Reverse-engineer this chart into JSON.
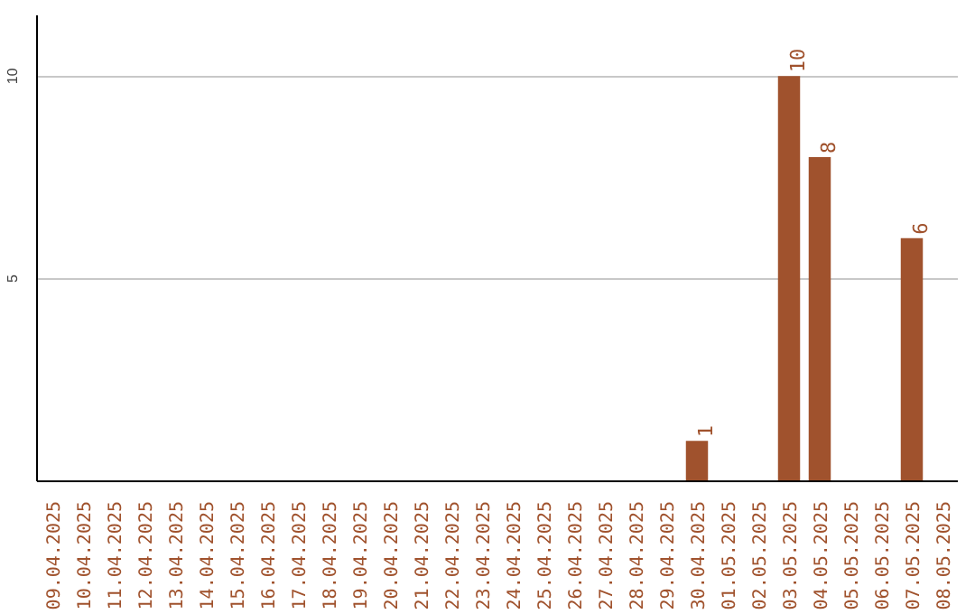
{
  "chart_data": {
    "type": "bar",
    "categories": [
      "09.04.2025",
      "10.04.2025",
      "11.04.2025",
      "12.04.2025",
      "13.04.2025",
      "14.04.2025",
      "15.04.2025",
      "16.04.2025",
      "17.04.2025",
      "18.04.2025",
      "19.04.2025",
      "20.04.2025",
      "21.04.2025",
      "22.04.2025",
      "23.04.2025",
      "24.04.2025",
      "25.04.2025",
      "26.04.2025",
      "27.04.2025",
      "28.04.2025",
      "29.04.2025",
      "30.04.2025",
      "01.05.2025",
      "02.05.2025",
      "03.05.2025",
      "04.05.2025",
      "05.05.2025",
      "06.05.2025",
      "07.05.2025",
      "08.05.2025"
    ],
    "values": [
      0,
      0,
      0,
      0,
      0,
      0,
      0,
      0,
      0,
      0,
      0,
      0,
      0,
      0,
      0,
      0,
      0,
      0,
      0,
      0,
      0,
      1,
      0,
      0,
      10,
      8,
      0,
      0,
      6,
      0
    ],
    "value_labels": [
      null,
      null,
      null,
      null,
      null,
      null,
      null,
      null,
      null,
      null,
      null,
      null,
      null,
      null,
      null,
      null,
      null,
      null,
      null,
      null,
      null,
      "1",
      null,
      null,
      "10",
      "8",
      null,
      null,
      "6",
      null
    ],
    "color": "#a0522d",
    "ylim": [
      0,
      11.5
    ],
    "yticks": [
      5,
      10
    ],
    "grid": "y"
  }
}
